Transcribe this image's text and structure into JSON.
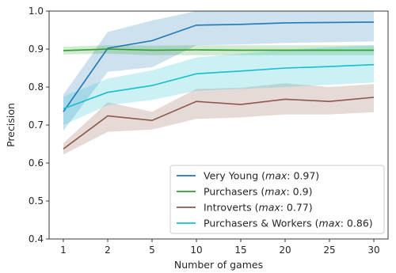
{
  "chart_data": {
    "type": "line",
    "title": "",
    "xlabel": "Number of games",
    "ylabel": "Precision",
    "x": [
      "1",
      "2",
      "5",
      "10",
      "15",
      "20",
      "25",
      "30"
    ],
    "ylim": [
      0.4,
      1.0
    ],
    "yticks": [
      "0.4",
      "0.5",
      "0.6",
      "0.7",
      "0.8",
      "0.9",
      "1.0"
    ],
    "grid": false,
    "legend_position": "bottom-right",
    "series": [
      {
        "name": "Very Young",
        "legend_max": "0.97",
        "color": "#1f77b4",
        "values": [
          0.735,
          0.902,
          0.922,
          0.963,
          0.965,
          0.969,
          0.97,
          0.971
        ],
        "lower": [
          0.685,
          0.84,
          0.852,
          0.91,
          0.912,
          0.916,
          0.918,
          0.92
        ],
        "upper": [
          0.78,
          0.945,
          0.975,
          1.0,
          1.0,
          1.0,
          1.0,
          1.0
        ]
      },
      {
        "name": "Purchasers",
        "legend_max": "0.9",
        "color": "#2ca02c",
        "values": [
          0.896,
          0.9,
          0.897,
          0.898,
          0.897,
          0.897,
          0.897,
          0.897
        ],
        "lower": [
          0.886,
          0.888,
          0.884,
          0.884,
          0.884,
          0.884,
          0.884,
          0.884
        ],
        "upper": [
          0.906,
          0.91,
          0.909,
          0.91,
          0.91,
          0.91,
          0.91,
          0.91
        ]
      },
      {
        "name": "Introverts",
        "legend_max": "0.77",
        "color": "#8c564b",
        "values": [
          0.637,
          0.724,
          0.712,
          0.762,
          0.754,
          0.768,
          0.762,
          0.773
        ],
        "lower": [
          0.622,
          0.682,
          0.688,
          0.716,
          0.72,
          0.728,
          0.728,
          0.734
        ],
        "upper": [
          0.652,
          0.76,
          0.735,
          0.795,
          0.798,
          0.81,
          0.8,
          0.808
        ]
      },
      {
        "name": "Purchasers & Workers",
        "legend_max": "0.86",
        "color": "#17becf",
        "values": [
          0.743,
          0.786,
          0.804,
          0.835,
          0.842,
          0.85,
          0.854,
          0.859
        ],
        "lower": [
          0.7,
          0.752,
          0.766,
          0.79,
          0.795,
          0.8,
          0.806,
          0.812
        ],
        "upper": [
          0.775,
          0.822,
          0.844,
          0.878,
          0.888,
          0.898,
          0.905,
          0.91
        ]
      }
    ]
  }
}
